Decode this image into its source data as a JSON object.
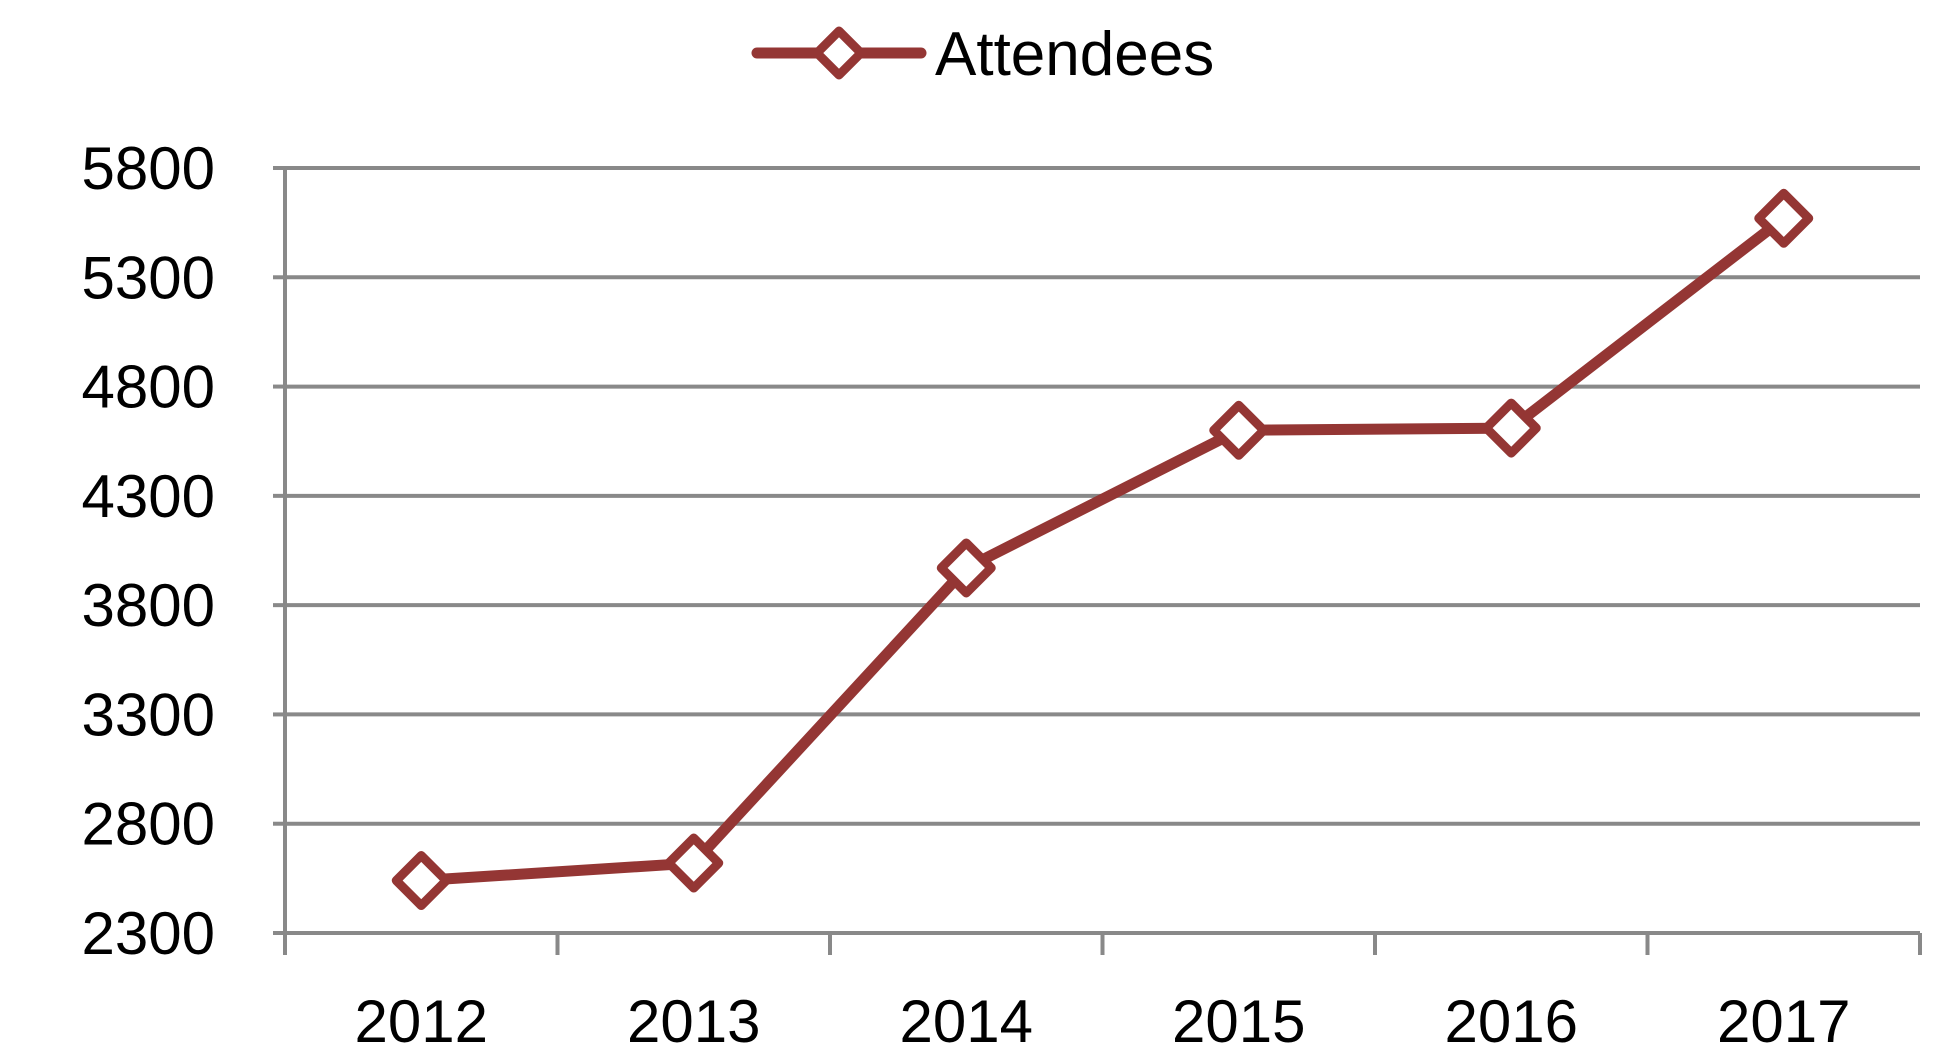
{
  "chart_data": {
    "type": "line",
    "title": "",
    "xlabel": "",
    "ylabel": "",
    "categories": [
      "2012",
      "2013",
      "2014",
      "2015",
      "2016",
      "2017"
    ],
    "series": [
      {
        "name": "Attendees",
        "values": [
          2540,
          2620,
          3970,
          4600,
          4610,
          5570
        ],
        "color": "#943634",
        "marker": "diamond"
      }
    ],
    "y_ticks": [
      "2300",
      "2800",
      "3300",
      "3800",
      "4300",
      "4800",
      "5300",
      "5800"
    ],
    "ylim": [
      2300,
      5800
    ],
    "grid": true,
    "legend_position": "top-center"
  },
  "colors": {
    "gridline": "#898989",
    "axis": "#898989",
    "series": "#943634",
    "marker_fill": "#ffffff"
  }
}
